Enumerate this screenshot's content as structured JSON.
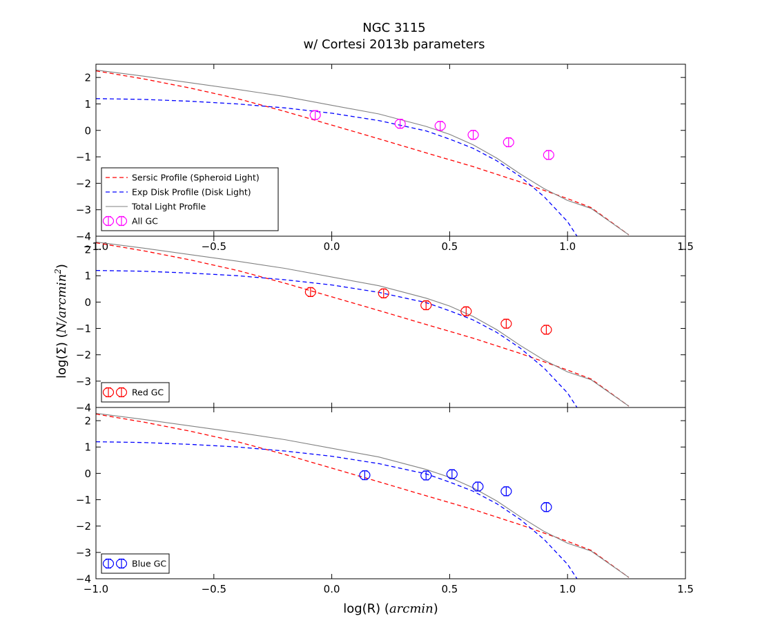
{
  "figure": {
    "title": [
      "NGC 3115",
      "w/ Cortesi 2013b parameters"
    ],
    "xlabel": {
      "main": "log(R)",
      "unit": "arcmin"
    },
    "ylabel": {
      "main": "log(Σ)",
      "unit": "N/arcmin",
      "unit_exponent": "2"
    }
  },
  "chart_data": [
    {
      "type": "line",
      "panel": "All GC",
      "xlim": [
        -1.0,
        1.5
      ],
      "ylim": [
        -4,
        2.5
      ],
      "x_ticks": [
        -1.0,
        -0.5,
        0.0,
        0.5,
        1.0,
        1.5
      ],
      "x_tick_labels": [
        "−1.0",
        "−0.5",
        "0.0",
        "0.5",
        "1.0",
        "1.5"
      ],
      "y_ticks": [
        2,
        1,
        0,
        -1,
        -2,
        -3,
        -4
      ],
      "y_tick_labels": [
        "2",
        "1",
        "0",
        "−1",
        "−2",
        "−3",
        "−4"
      ],
      "legend_position": "lower-left",
      "lines": [
        {
          "name": "Sersic Profile (Spheroid Light)",
          "color": "#ff0000",
          "dash": true,
          "x": [
            -1.0,
            -0.8,
            -0.6,
            -0.4,
            -0.2,
            0.0,
            0.2,
            0.4,
            0.6,
            0.8,
            1.0,
            1.1,
            1.26
          ],
          "y": [
            2.25,
            1.95,
            1.6,
            1.2,
            0.72,
            0.2,
            -0.32,
            -0.85,
            -1.37,
            -1.95,
            -2.58,
            -2.92,
            -3.95
          ]
        },
        {
          "name": "Exp Disk Profile (Disk Light)",
          "color": "#0000ff",
          "dash": true,
          "x": [
            -1.0,
            -0.8,
            -0.6,
            -0.4,
            -0.2,
            0.0,
            0.2,
            0.4,
            0.5,
            0.6,
            0.7,
            0.8,
            0.9,
            1.0,
            1.04
          ],
          "y": [
            1.2,
            1.17,
            1.1,
            1.0,
            0.85,
            0.65,
            0.37,
            -0.02,
            -0.33,
            -0.68,
            -1.15,
            -1.75,
            -2.5,
            -3.45,
            -4.0
          ]
        },
        {
          "name": "Total Light Profile",
          "color": "#808080",
          "dash": false,
          "x": [
            -1.0,
            -0.8,
            -0.6,
            -0.4,
            -0.2,
            0.0,
            0.2,
            0.4,
            0.5,
            0.6,
            0.7,
            0.8,
            0.9,
            1.0,
            1.1,
            1.26
          ],
          "y": [
            2.28,
            2.05,
            1.8,
            1.55,
            1.28,
            0.95,
            0.62,
            0.15,
            -0.15,
            -0.55,
            -1.05,
            -1.65,
            -2.2,
            -2.65,
            -2.95,
            -3.95
          ]
        }
      ],
      "points": {
        "name": "All GC",
        "color": "#ff00ff",
        "x": [
          -0.07,
          0.29,
          0.46,
          0.6,
          0.75,
          0.92
        ],
        "y": [
          0.58,
          0.25,
          0.17,
          -0.17,
          -0.45,
          -0.93
        ]
      },
      "legend": [
        {
          "label": "Sersic Profile (Spheroid Light)",
          "kind": "dash",
          "color": "#ff0000"
        },
        {
          "label": "Exp Disk Profile (Disk Light)",
          "kind": "dash",
          "color": "#0000ff"
        },
        {
          "label": "Total Light Profile",
          "kind": "solid",
          "color": "#808080"
        },
        {
          "label": "All GC",
          "kind": "marker",
          "color": "#ff00ff"
        }
      ]
    },
    {
      "type": "line",
      "panel": "Red GC",
      "xlim": [
        -1.0,
        1.5
      ],
      "ylim": [
        -4,
        2.5
      ],
      "y_ticks": [
        2,
        1,
        0,
        -1,
        -2,
        -3,
        -4
      ],
      "y_tick_labels": [
        "2",
        "1",
        "0",
        "−1",
        "−2",
        "−3",
        "−4"
      ],
      "legend_position": "lower-left",
      "lines": [
        {
          "name": "Sersic Profile (Spheroid Light)",
          "color": "#ff0000",
          "dash": true,
          "x": [
            -1.0,
            -0.8,
            -0.6,
            -0.4,
            -0.2,
            0.0,
            0.2,
            0.4,
            0.6,
            0.8,
            1.0,
            1.1,
            1.26
          ],
          "y": [
            2.25,
            1.95,
            1.6,
            1.2,
            0.72,
            0.2,
            -0.32,
            -0.85,
            -1.37,
            -1.95,
            -2.58,
            -2.92,
            -3.95
          ]
        },
        {
          "name": "Exp Disk Profile (Disk Light)",
          "color": "#0000ff",
          "dash": true,
          "x": [
            -1.0,
            -0.8,
            -0.6,
            -0.4,
            -0.2,
            0.0,
            0.2,
            0.4,
            0.5,
            0.6,
            0.7,
            0.8,
            0.9,
            1.0,
            1.04
          ],
          "y": [
            1.2,
            1.17,
            1.1,
            1.0,
            0.85,
            0.65,
            0.37,
            -0.02,
            -0.33,
            -0.68,
            -1.15,
            -1.75,
            -2.5,
            -3.45,
            -4.0
          ]
        },
        {
          "name": "Total Light Profile",
          "color": "#808080",
          "dash": false,
          "x": [
            -1.0,
            -0.8,
            -0.6,
            -0.4,
            -0.2,
            0.0,
            0.2,
            0.4,
            0.5,
            0.6,
            0.7,
            0.8,
            0.9,
            1.0,
            1.1,
            1.26
          ],
          "y": [
            2.28,
            2.05,
            1.8,
            1.55,
            1.28,
            0.95,
            0.62,
            0.15,
            -0.15,
            -0.55,
            -1.05,
            -1.65,
            -2.2,
            -2.65,
            -2.95,
            -3.95
          ]
        }
      ],
      "points": {
        "name": "Red GC",
        "color": "#ff0000",
        "x": [
          -0.09,
          0.22,
          0.4,
          0.57,
          0.74,
          0.91
        ],
        "y": [
          0.38,
          0.33,
          -0.12,
          -0.35,
          -0.82,
          -1.05
        ]
      },
      "legend": [
        {
          "label": "Red GC",
          "kind": "marker",
          "color": "#ff0000"
        }
      ]
    },
    {
      "type": "line",
      "panel": "Blue GC",
      "xlim": [
        -1.0,
        1.5
      ],
      "ylim": [
        -4,
        2.5
      ],
      "x_ticks": [
        -1.0,
        -0.5,
        0.0,
        0.5,
        1.0,
        1.5
      ],
      "x_tick_labels": [
        "−1.0",
        "−0.5",
        "0.0",
        "0.5",
        "1.0",
        "1.5"
      ],
      "y_ticks": [
        2,
        1,
        0,
        -1,
        -2,
        -3,
        -4
      ],
      "y_tick_labels": [
        "2",
        "1",
        "0",
        "−1",
        "−2",
        "−3",
        "−4"
      ],
      "legend_position": "lower-left",
      "lines": [
        {
          "name": "Sersic Profile (Spheroid Light)",
          "color": "#ff0000",
          "dash": true,
          "x": [
            -1.0,
            -0.8,
            -0.6,
            -0.4,
            -0.2,
            0.0,
            0.2,
            0.4,
            0.6,
            0.8,
            1.0,
            1.1,
            1.26
          ],
          "y": [
            2.25,
            1.95,
            1.6,
            1.2,
            0.72,
            0.2,
            -0.32,
            -0.85,
            -1.37,
            -1.95,
            -2.58,
            -2.92,
            -3.95
          ]
        },
        {
          "name": "Exp Disk Profile (Disk Light)",
          "color": "#0000ff",
          "dash": true,
          "x": [
            -1.0,
            -0.8,
            -0.6,
            -0.4,
            -0.2,
            0.0,
            0.2,
            0.4,
            0.5,
            0.6,
            0.7,
            0.8,
            0.9,
            1.0,
            1.04
          ],
          "y": [
            1.2,
            1.17,
            1.1,
            1.0,
            0.85,
            0.65,
            0.37,
            -0.02,
            -0.33,
            -0.68,
            -1.15,
            -1.75,
            -2.5,
            -3.45,
            -4.0
          ]
        },
        {
          "name": "Total Light Profile",
          "color": "#808080",
          "dash": false,
          "x": [
            -1.0,
            -0.8,
            -0.6,
            -0.4,
            -0.2,
            0.0,
            0.2,
            0.4,
            0.5,
            0.6,
            0.7,
            0.8,
            0.9,
            1.0,
            1.1,
            1.26
          ],
          "y": [
            2.28,
            2.05,
            1.8,
            1.55,
            1.28,
            0.95,
            0.62,
            0.15,
            -0.15,
            -0.55,
            -1.05,
            -1.65,
            -2.2,
            -2.65,
            -2.95,
            -3.95
          ]
        }
      ],
      "points": {
        "name": "Blue GC",
        "color": "#0000ff",
        "x": [
          0.14,
          0.4,
          0.51,
          0.62,
          0.74,
          0.91
        ],
        "y": [
          -0.07,
          -0.08,
          -0.03,
          -0.5,
          -0.68,
          -1.28
        ]
      },
      "legend": [
        {
          "label": "Blue GC",
          "kind": "marker",
          "color": "#0000ff"
        }
      ]
    }
  ]
}
